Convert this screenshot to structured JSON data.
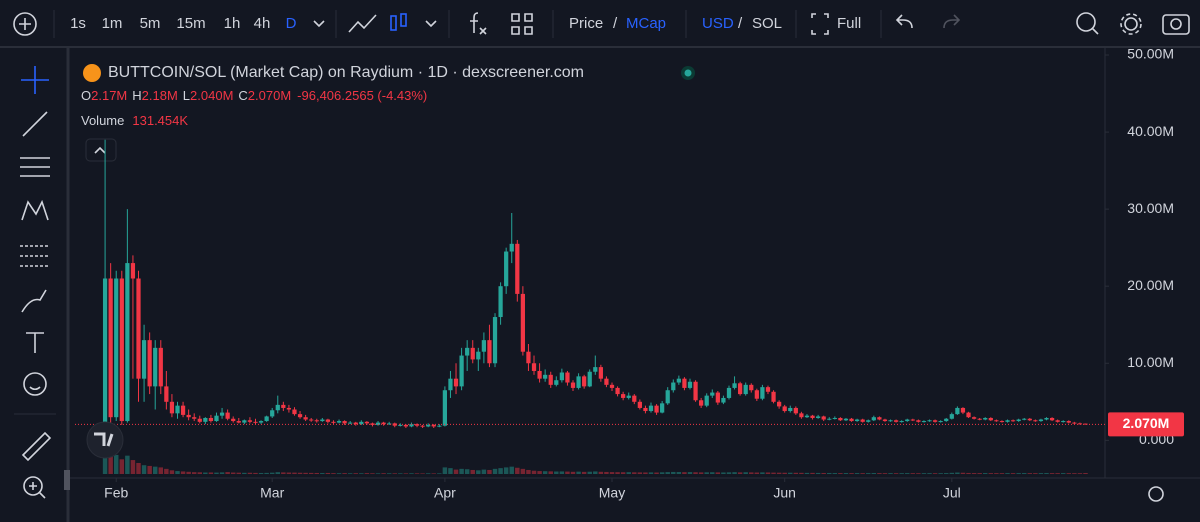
{
  "toolbar": {
    "intervals": [
      "1s",
      "1m",
      "5m",
      "15m",
      "1h",
      "4h",
      "D"
    ],
    "price": "Price",
    "sep1": "/",
    "mcap": "MCap",
    "usd": "USD",
    "sep2": "/",
    "sol": "SOL",
    "full": "Full"
  },
  "legend": {
    "title": "BUTTCOIN/SOL (Market Cap) on Raydium · 1D · dexscreener.com",
    "ohlc": [
      {
        "key": "O",
        "value": "2.17M"
      },
      {
        "key": "H",
        "value": "2.18M"
      },
      {
        "key": "L",
        "value": "2.040M"
      },
      {
        "key": "C",
        "value": "2.070M"
      }
    ],
    "change": "-96,406.2565 (-4.43%)",
    "volume_label": "Volume",
    "volume_value": "131.454K"
  },
  "chart_data": {
    "type": "candlestick",
    "up_color": "#26a69a",
    "down_color": "#f23645",
    "ylim": [
      -4.5,
      51.3
    ],
    "yticks": [
      {
        "value": 0,
        "label": "0.000"
      },
      {
        "value": 10,
        "label": "10.00M"
      },
      {
        "value": 20,
        "label": "20.00M"
      },
      {
        "value": 30,
        "label": "30.00M"
      },
      {
        "value": 40,
        "label": "40.00M"
      },
      {
        "value": 50,
        "label": "50.00M"
      }
    ],
    "xlim": [
      -5.4,
      179.5
    ],
    "xticks": [
      {
        "value": 2,
        "label": "Feb"
      },
      {
        "value": 30,
        "label": "Mar"
      },
      {
        "value": 61,
        "label": "Apr"
      },
      {
        "value": 91,
        "label": "May"
      },
      {
        "value": 122,
        "label": "Jun"
      },
      {
        "value": 152,
        "label": "Jul"
      }
    ],
    "price_label": {
      "value": 2.07,
      "label": "2.070M"
    },
    "ohlc": [
      [
        2,
        39,
        1.5,
        21
      ],
      [
        21,
        23,
        1.2,
        3
      ],
      [
        3,
        22,
        2.5,
        21
      ],
      [
        21,
        22,
        2,
        2.5
      ],
      [
        2.5,
        30,
        2.3,
        23
      ],
      [
        23,
        24,
        8,
        21
      ],
      [
        21,
        22,
        5,
        8
      ],
      [
        8,
        15,
        5,
        13
      ],
      [
        13,
        14,
        6,
        7
      ],
      [
        7,
        13,
        4,
        12
      ],
      [
        12,
        13,
        6,
        7
      ],
      [
        7,
        9,
        4,
        5
      ],
      [
        5,
        6,
        3,
        3.5
      ],
      [
        3.5,
        5,
        2.8,
        4.5
      ],
      [
        4.5,
        5,
        3,
        3.3
      ],
      [
        3.3,
        4,
        2.6,
        3
      ],
      [
        3,
        3.5,
        2.5,
        2.8
      ],
      [
        2.8,
        3.2,
        2.2,
        2.4
      ],
      [
        2.4,
        3,
        2.1,
        2.9
      ],
      [
        2.9,
        3.3,
        2.3,
        2.5
      ],
      [
        2.5,
        3.6,
        2.4,
        3.2
      ],
      [
        3.2,
        4.2,
        2.8,
        3.6
      ],
      [
        3.6,
        4,
        2.6,
        2.8
      ],
      [
        2.8,
        3.1,
        2.3,
        2.5
      ],
      [
        2.5,
        2.9,
        2.2,
        2.3
      ],
      [
        2.3,
        2.7,
        2.1,
        2.6
      ],
      [
        2.6,
        3,
        2.2,
        2.4
      ],
      [
        2.4,
        2.8,
        2.1,
        2.3
      ],
      [
        2.3,
        2.6,
        2.1,
        2.5
      ],
      [
        2.5,
        3.2,
        2.4,
        3.1
      ],
      [
        3.1,
        4.2,
        2.9,
        3.9
      ],
      [
        3.9,
        5.8,
        3.5,
        4.6
      ],
      [
        4.6,
        5,
        3.8,
        4.2
      ],
      [
        4.2,
        4.6,
        3.6,
        4
      ],
      [
        4,
        4.3,
        3.2,
        3.4
      ],
      [
        3.4,
        3.8,
        2.8,
        3
      ],
      [
        3,
        3.3,
        2.5,
        2.7
      ],
      [
        2.7,
        2.9,
        2.4,
        2.6
      ],
      [
        2.6,
        2.8,
        2.3,
        2.5
      ],
      [
        2.5,
        2.9,
        2.4,
        2.7
      ],
      [
        2.7,
        2.8,
        2.2,
        2.4
      ],
      [
        2.4,
        2.6,
        2.1,
        2.3
      ],
      [
        2.3,
        2.7,
        2.2,
        2.5
      ],
      [
        2.5,
        2.6,
        2,
        2.2
      ],
      [
        2.2,
        2.5,
        2.1,
        2.3
      ],
      [
        2.3,
        2.4,
        1.9,
        2.1
      ],
      [
        2.1,
        2.6,
        2,
        2.4
      ],
      [
        2.4,
        2.5,
        2,
        2.2
      ],
      [
        2.2,
        2.3,
        1.8,
        2
      ],
      [
        2,
        2.5,
        1.9,
        2.3
      ],
      [
        2.3,
        2.4,
        1.9,
        2.1
      ],
      [
        2.1,
        2.4,
        2,
        2.2
      ],
      [
        2.2,
        2.3,
        1.7,
        1.9
      ],
      [
        1.9,
        2.2,
        1.8,
        2
      ],
      [
        2,
        2.1,
        1.6,
        1.8
      ],
      [
        1.8,
        2.3,
        1.7,
        2.1
      ],
      [
        2.1,
        2.2,
        1.7,
        1.9
      ],
      [
        1.9,
        2,
        1.6,
        1.8
      ],
      [
        1.8,
        2.2,
        1.7,
        2
      ],
      [
        2,
        2.1,
        1.6,
        1.8
      ],
      [
        1.8,
        2.1,
        1.7,
        1.9
      ],
      [
        1.9,
        7,
        1.8,
        6.5
      ],
      [
        6.5,
        9,
        5.5,
        8
      ],
      [
        8,
        10,
        6,
        7
      ],
      [
        7,
        12,
        6.5,
        11
      ],
      [
        11,
        13,
        9,
        12
      ],
      [
        12,
        13,
        10,
        10.5
      ],
      [
        10.5,
        12,
        9,
        11.5
      ],
      [
        11.5,
        14,
        10,
        13
      ],
      [
        13,
        15,
        9.5,
        10
      ],
      [
        10,
        16.5,
        9.5,
        16
      ],
      [
        16,
        20.5,
        15,
        20
      ],
      [
        20,
        25,
        19,
        24.5
      ],
      [
        24.5,
        29.5,
        23,
        25.5
      ],
      [
        25.5,
        26,
        18,
        19
      ],
      [
        19,
        20,
        11,
        11.5
      ],
      [
        11.5,
        12.5,
        9,
        10
      ],
      [
        10,
        11,
        8.5,
        9
      ],
      [
        9,
        10,
        7.5,
        8
      ],
      [
        8,
        9.2,
        7.6,
        8.5
      ],
      [
        8.5,
        8.9,
        6.8,
        7.2
      ],
      [
        7.2,
        8.3,
        7,
        7.8
      ],
      [
        7.8,
        9.3,
        7.5,
        8.8
      ],
      [
        8.8,
        9,
        7.1,
        7.5
      ],
      [
        7.5,
        7.8,
        6.4,
        6.8
      ],
      [
        6.8,
        8.7,
        6.6,
        8.3
      ],
      [
        8.3,
        8.5,
        6.7,
        7
      ],
      [
        7,
        9.2,
        6.9,
        8.9
      ],
      [
        8.9,
        11,
        8.5,
        9.5
      ],
      [
        9.5,
        9.8,
        7.6,
        8
      ],
      [
        8,
        8.3,
        6.9,
        7.2
      ],
      [
        7.2,
        7.5,
        6.4,
        6.8
      ],
      [
        6.8,
        7,
        5.7,
        6
      ],
      [
        6,
        6.3,
        5.2,
        5.5
      ],
      [
        5.5,
        6.2,
        5.3,
        5.8
      ],
      [
        5.8,
        6,
        4.7,
        5
      ],
      [
        5,
        5.3,
        4,
        4.2
      ],
      [
        4.2,
        4.5,
        3.5,
        3.8
      ],
      [
        3.8,
        4.9,
        3.6,
        4.5
      ],
      [
        4.5,
        4.7,
        3.3,
        3.6
      ],
      [
        3.6,
        5.1,
        3.5,
        4.8
      ],
      [
        4.8,
        6.9,
        4.6,
        6.5
      ],
      [
        6.5,
        7.9,
        6.2,
        7.5
      ],
      [
        7.5,
        8.4,
        7.2,
        8
      ],
      [
        8,
        8.2,
        6.5,
        6.8
      ],
      [
        6.8,
        8,
        6.6,
        7.6
      ],
      [
        7.6,
        7.8,
        5,
        5.2
      ],
      [
        5.2,
        5.5,
        4.2,
        4.5
      ],
      [
        4.5,
        6.1,
        4.3,
        5.8
      ],
      [
        5.8,
        6.6,
        5.5,
        6.2
      ],
      [
        6.2,
        6.4,
        4.6,
        4.9
      ],
      [
        4.9,
        5.8,
        4.7,
        5.5
      ],
      [
        5.5,
        7.1,
        5.3,
        6.8
      ],
      [
        6.8,
        8.3,
        6.6,
        7.4
      ],
      [
        7.4,
        7.6,
        5.8,
        6
      ],
      [
        6,
        7.5,
        5.8,
        7.2
      ],
      [
        7.2,
        7.4,
        6.2,
        6.5
      ],
      [
        6.5,
        6.7,
        5.1,
        5.4
      ],
      [
        5.4,
        7.2,
        5.2,
        6.9
      ],
      [
        6.9,
        7.1,
        6,
        6.3
      ],
      [
        6.3,
        6.5,
        4.8,
        5
      ],
      [
        5,
        5.2,
        4.1,
        4.4
      ],
      [
        4.4,
        4.6,
        3.6,
        3.8
      ],
      [
        3.8,
        4.5,
        3.6,
        4.2
      ],
      [
        4.2,
        4.4,
        3.3,
        3.5
      ],
      [
        3.5,
        3.7,
        2.8,
        3
      ],
      [
        3,
        3.4,
        2.9,
        3.2
      ],
      [
        3.2,
        3.3,
        2.7,
        2.9
      ],
      [
        2.9,
        3.3,
        2.8,
        3.1
      ],
      [
        3.1,
        3.2,
        2.5,
        2.7
      ],
      [
        2.7,
        3,
        2.6,
        2.8
      ],
      [
        2.8,
        3.1,
        2.7,
        2.9
      ],
      [
        2.9,
        3,
        2.5,
        2.6
      ],
      [
        2.6,
        2.9,
        2.5,
        2.8
      ],
      [
        2.8,
        2.9,
        2.4,
        2.5
      ],
      [
        2.5,
        2.8,
        2.4,
        2.7
      ],
      [
        2.7,
        2.8,
        2.3,
        2.4
      ],
      [
        2.4,
        2.7,
        2.3,
        2.6
      ],
      [
        2.6,
        3.2,
        2.5,
        3
      ],
      [
        3,
        3.1,
        2.6,
        2.7
      ],
      [
        2.7,
        2.8,
        2.4,
        2.5
      ],
      [
        2.5,
        2.7,
        2.4,
        2.6
      ],
      [
        2.6,
        2.7,
        2.3,
        2.4
      ],
      [
        2.4,
        2.6,
        2.3,
        2.5
      ],
      [
        2.5,
        2.8,
        2.4,
        2.7
      ],
      [
        2.7,
        2.8,
        2.5,
        2.6
      ],
      [
        2.6,
        2.7,
        2.3,
        2.4
      ],
      [
        2.4,
        2.6,
        2.3,
        2.5
      ],
      [
        2.5,
        2.7,
        2.4,
        2.6
      ],
      [
        2.6,
        2.7,
        2.3,
        2.4
      ],
      [
        2.4,
        2.6,
        2.3,
        2.5
      ],
      [
        2.5,
        2.9,
        2.4,
        2.8
      ],
      [
        2.8,
        3.6,
        2.7,
        3.4
      ],
      [
        3.4,
        4.4,
        3.3,
        4.2
      ],
      [
        4.2,
        4.3,
        3.4,
        3.6
      ],
      [
        3.6,
        3.7,
        2.9,
        3
      ],
      [
        3,
        3.1,
        2.7,
        2.8
      ],
      [
        2.8,
        2.9,
        2.6,
        2.7
      ],
      [
        2.7,
        3,
        2.6,
        2.9
      ],
      [
        2.9,
        3,
        2.5,
        2.6
      ],
      [
        2.6,
        2.7,
        2.4,
        2.5
      ],
      [
        2.5,
        2.6,
        2.3,
        2.4
      ],
      [
        2.4,
        2.7,
        2.3,
        2.6
      ],
      [
        2.6,
        2.7,
        2.4,
        2.5
      ],
      [
        2.5,
        2.8,
        2.4,
        2.7
      ],
      [
        2.7,
        2.9,
        2.6,
        2.8
      ],
      [
        2.8,
        2.9,
        2.5,
        2.6
      ],
      [
        2.6,
        2.7,
        2.4,
        2.5
      ],
      [
        2.5,
        2.8,
        2.4,
        2.7
      ],
      [
        2.7,
        3,
        2.6,
        2.9
      ],
      [
        2.9,
        3,
        2.5,
        2.6
      ],
      [
        2.6,
        2.7,
        2.3,
        2.4
      ],
      [
        2.4,
        2.6,
        2.3,
        2.5
      ],
      [
        2.5,
        2.6,
        2.2,
        2.3
      ],
      [
        2.3,
        2.4,
        2.1,
        2.2
      ],
      [
        2.2,
        2.3,
        2.1,
        2.17
      ],
      [
        2.17,
        2.18,
        2.04,
        2.07
      ]
    ],
    "volume": [
      3000,
      2800,
      2600,
      2000,
      2500,
      1900,
      1500,
      1200,
      1100,
      1000,
      900,
      700,
      500,
      400,
      350,
      300,
      250,
      230,
      200,
      210,
      190,
      220,
      260,
      200,
      180,
      160,
      170,
      150,
      140,
      150,
      180,
      250,
      220,
      200,
      190,
      170,
      160,
      150,
      140,
      130,
      140,
      120,
      110,
      120,
      100,
      110,
      100,
      120,
      100,
      90,
      110,
      100,
      95,
      90,
      85,
      100,
      90,
      80,
      95,
      85,
      90,
      900,
      800,
      600,
      700,
      650,
      550,
      500,
      600,
      550,
      700,
      800,
      900,
      1000,
      850,
      700,
      550,
      450,
      400,
      380,
      360,
      340,
      350,
      330,
      300,
      320,
      290,
      310,
      350,
      300,
      280,
      260,
      250,
      240,
      250,
      230,
      220,
      210,
      220,
      200,
      230,
      260,
      280,
      270,
      250,
      260,
      240,
      220,
      230,
      240,
      220,
      210,
      230,
      250,
      220,
      240,
      220,
      200,
      220,
      210,
      190,
      180,
      170,
      175,
      165,
      160,
      150,
      155,
      145,
      140,
      140,
      130,
      125,
      130,
      120,
      125,
      115,
      120,
      135,
      125,
      115,
      120,
      110,
      115,
      120,
      115,
      110,
      112,
      118,
      110,
      115,
      125,
      160,
      200,
      170,
      140,
      130,
      125,
      128,
      122,
      118,
      115,
      120,
      118,
      124,
      128,
      122,
      118,
      124,
      130,
      122,
      118,
      120,
      115,
      112,
      110,
      131.454
    ]
  }
}
